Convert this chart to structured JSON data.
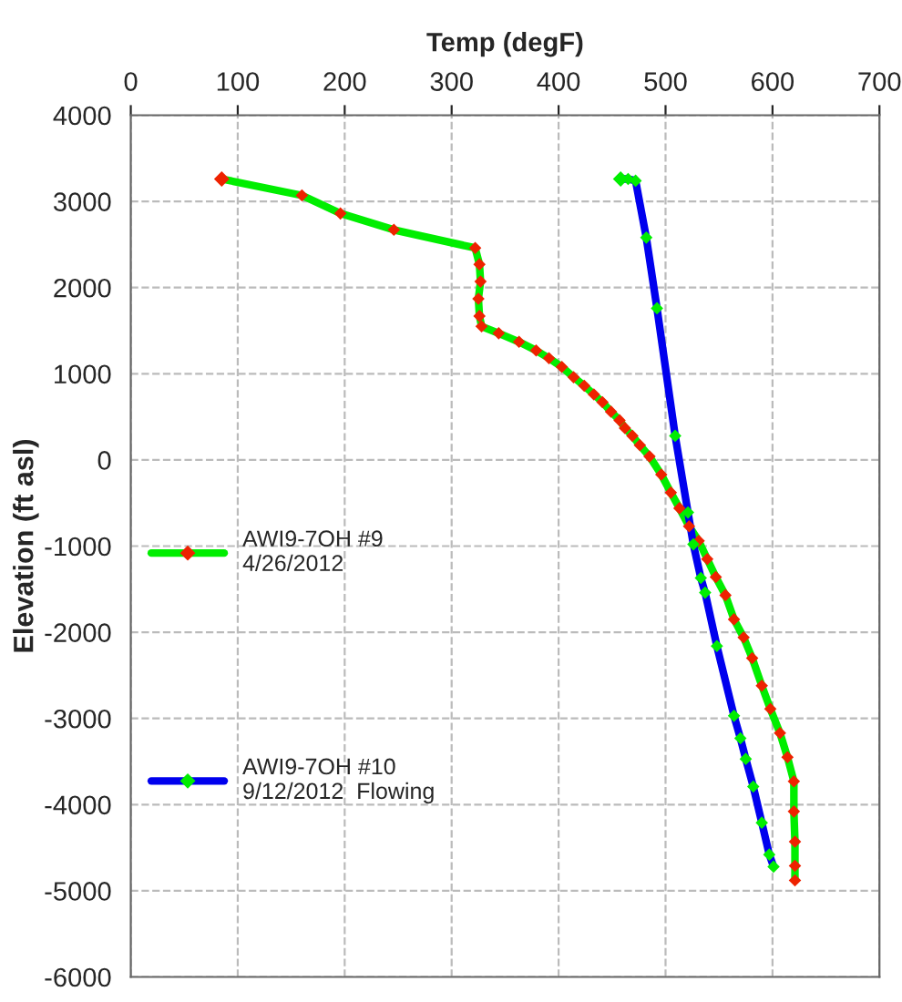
{
  "chart_data": {
    "type": "line",
    "xlabel": "Temp (degF)",
    "ylabel": "Elevation (ft asl)",
    "xlim": [
      0,
      700
    ],
    "xticks": [
      0,
      100,
      200,
      300,
      400,
      500,
      600,
      700
    ],
    "ylim": [
      -6000,
      4000
    ],
    "yticks": [
      -6000,
      -5000,
      -4000,
      -3000,
      -2000,
      -1000,
      0,
      1000,
      2000,
      3000,
      4000
    ],
    "grid": true,
    "legend": "left",
    "marker": "diamond",
    "line_style": "solid",
    "series": [
      {
        "name": "AWI9-7OH #9\n4/26/2012",
        "color": "#00ee00",
        "colors": [
          "#ee2200",
          "#ee2200",
          "#ee2200",
          "#ee2200",
          "#ee2200",
          "#ee2200",
          "#ee2200",
          "#ee2200",
          "#ee2200",
          "#ee2200",
          "#ee2200",
          "#ee2200",
          "#ee2200",
          "#ee2200",
          "#ee2200",
          "#ee2200",
          "#ee2200",
          "#ee2200",
          "#ee2200",
          "#ee2200",
          "#ee2200",
          "#ee2200",
          "#ee2200",
          "#ee2200",
          "#ee2200",
          "#ee2200",
          "#ee2200",
          "#ee2200",
          "#ee2200",
          "#ee2200",
          "#ee2200",
          "#ee2200",
          "#ee2200",
          "#ee2200",
          "#ee2200",
          "#ee2200",
          "#ee2200",
          "#ee2200",
          "#ee2200",
          "#ee2200",
          "#ee2200",
          "#ee2200",
          "#ee2200",
          "#ee2200",
          "#ee2200"
        ],
        "x": [
          85,
          160,
          196,
          246,
          322,
          326,
          327,
          325,
          326,
          328,
          344,
          363,
          379,
          391,
          403,
          414,
          424,
          433,
          441,
          449,
          457,
          462,
          469,
          476,
          485,
          496,
          505,
          513,
          522,
          531,
          539,
          547,
          556,
          564,
          573,
          581,
          590,
          598,
          607,
          614,
          620,
          620,
          621,
          621,
          621
        ],
        "values": [
          3260,
          3070,
          2860,
          2670,
          2460,
          2270,
          2070,
          1870,
          1670,
          1550,
          1470,
          1370,
          1270,
          1180,
          1080,
          960,
          860,
          760,
          670,
          560,
          460,
          370,
          280,
          170,
          40,
          -170,
          -380,
          -560,
          -770,
          -940,
          -1150,
          -1360,
          -1570,
          -1850,
          -2060,
          -2300,
          -2620,
          -2890,
          -3170,
          -3450,
          -3730,
          -4080,
          -4430,
          -4710,
          -4880
        ]
      },
      {
        "name": "AWI9-7OH #10\n9/12/2012  Flowing",
        "color": "#0000ee",
        "colors": [
          "#00ee00",
          "#00ee00",
          "#00ee00",
          "#00ee00",
          "#00ee00",
          "#00ee00",
          "#00ee00",
          "#00ee00",
          "#00ee00",
          "#00ee00",
          "#00ee00",
          "#00ee00",
          "#00ee00",
          "#00ee00",
          "#00ee00",
          "#00ee00",
          "#00ee00",
          "#00ee00"
        ],
        "x": [
          458,
          465,
          472,
          482,
          492,
          509,
          521,
          526,
          533,
          537,
          548,
          564,
          570,
          575,
          582,
          590,
          597,
          601
        ],
        "values": [
          3260,
          3260,
          3240,
          2580,
          1760,
          280,
          -610,
          -980,
          -1370,
          -1540,
          -2160,
          -2970,
          -3230,
          -3470,
          -3790,
          -4210,
          -4580,
          -4720
        ]
      }
    ]
  }
}
